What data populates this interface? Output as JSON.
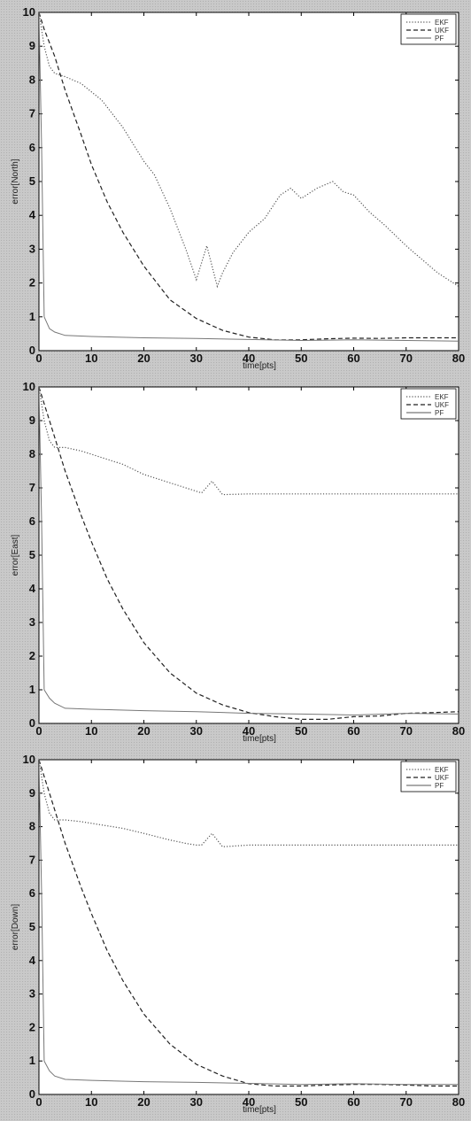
{
  "chart_data": [
    {
      "type": "line",
      "xlabel": "time[pts]",
      "ylabel": "error[North]",
      "xlim": [
        0,
        80
      ],
      "ylim": [
        0,
        10
      ],
      "xticks": [
        "0",
        "10",
        "20",
        "30",
        "40",
        "50",
        "60",
        "70",
        "80"
      ],
      "yticks": [
        "0",
        "1",
        "2",
        "3",
        "4",
        "5",
        "6",
        "7",
        "8",
        "9",
        "10"
      ],
      "grid": false,
      "legend_position": "top-right",
      "series": [
        {
          "name": "EKF",
          "style": "dotted",
          "color": "#555555",
          "x": [
            0,
            1,
            2,
            3,
            5,
            8,
            12,
            16,
            20,
            22,
            25,
            28,
            30,
            32,
            34,
            35,
            37,
            40,
            43,
            46,
            48,
            50,
            53,
            56,
            58,
            60,
            63,
            66,
            70,
            73,
            76,
            80
          ],
          "y": [
            10,
            9,
            8.4,
            8.2,
            8.1,
            7.9,
            7.4,
            6.6,
            5.6,
            5.2,
            4.2,
            3,
            2.1,
            3.1,
            1.9,
            2.3,
            2.9,
            3.5,
            3.9,
            4.6,
            4.8,
            4.5,
            4.8,
            5,
            4.7,
            4.6,
            4.1,
            3.7,
            3.1,
            2.7,
            2.3,
            1.9
          ]
        },
        {
          "name": "UKF",
          "style": "dashed",
          "color": "#222222",
          "x": [
            0,
            1,
            2,
            3,
            5,
            8,
            10,
            13,
            16,
            20,
            25,
            30,
            35,
            40,
            45,
            50,
            55,
            60,
            65,
            70,
            75,
            80
          ],
          "y": [
            10,
            9.5,
            9.1,
            8.7,
            7.7,
            6.4,
            5.5,
            4.4,
            3.5,
            2.5,
            1.5,
            0.95,
            0.6,
            0.4,
            0.32,
            0.32,
            0.35,
            0.37,
            0.36,
            0.38,
            0.38,
            0.38
          ]
        },
        {
          "name": "PF",
          "style": "solid",
          "color": "#777777",
          "x": [
            0,
            0.5,
            1,
            2,
            3,
            5,
            10,
            20,
            30,
            40,
            50,
            60,
            70,
            80
          ],
          "y": [
            10,
            6,
            1,
            0.65,
            0.55,
            0.45,
            0.42,
            0.38,
            0.36,
            0.33,
            0.3,
            0.32,
            0.3,
            0.28
          ]
        }
      ]
    },
    {
      "type": "line",
      "xlabel": "time[pts]",
      "ylabel": "error[East]",
      "xlim": [
        0,
        80
      ],
      "ylim": [
        0,
        10
      ],
      "xticks": [
        "0",
        "10",
        "20",
        "30",
        "40",
        "50",
        "60",
        "70",
        "80"
      ],
      "yticks": [
        "0",
        "1",
        "2",
        "3",
        "4",
        "5",
        "6",
        "7",
        "8",
        "9",
        "10"
      ],
      "grid": false,
      "legend_position": "top-right",
      "series": [
        {
          "name": "EKF",
          "style": "dotted",
          "color": "#555555",
          "x": [
            0,
            1,
            2,
            3,
            5,
            8,
            12,
            16,
            20,
            24,
            28,
            30,
            31,
            33,
            35,
            40,
            50,
            60,
            70,
            80
          ],
          "y": [
            10,
            9,
            8.4,
            8.2,
            8.2,
            8.1,
            7.9,
            7.7,
            7.4,
            7.2,
            7,
            6.9,
            6.85,
            7.2,
            6.8,
            6.82,
            6.82,
            6.82,
            6.82,
            6.82
          ]
        },
        {
          "name": "UKF",
          "style": "dashed",
          "color": "#222222",
          "x": [
            0,
            1,
            2,
            3,
            5,
            8,
            10,
            13,
            16,
            20,
            25,
            30,
            35,
            40,
            45,
            50,
            55,
            60,
            65,
            70,
            75,
            80
          ],
          "y": [
            10,
            9.5,
            9,
            8.5,
            7.5,
            6.2,
            5.4,
            4.3,
            3.4,
            2.4,
            1.5,
            0.9,
            0.55,
            0.32,
            0.2,
            0.12,
            0.12,
            0.2,
            0.22,
            0.3,
            0.32,
            0.35
          ]
        },
        {
          "name": "PF",
          "style": "solid",
          "color": "#777777",
          "x": [
            0,
            0.5,
            1,
            2,
            3,
            5,
            10,
            20,
            30,
            40,
            50,
            60,
            70,
            80
          ],
          "y": [
            10,
            6,
            1,
            0.75,
            0.6,
            0.45,
            0.42,
            0.38,
            0.35,
            0.3,
            0.28,
            0.25,
            0.3,
            0.28
          ]
        }
      ]
    },
    {
      "type": "line",
      "xlabel": "time[pts]",
      "ylabel": "error[Down]",
      "xlim": [
        0,
        80
      ],
      "ylim": [
        0,
        10
      ],
      "xticks": [
        "0",
        "10",
        "20",
        "30",
        "40",
        "50",
        "60",
        "70",
        "80"
      ],
      "yticks": [
        "0",
        "1",
        "2",
        "3",
        "4",
        "5",
        "6",
        "7",
        "8",
        "9",
        "10"
      ],
      "grid": false,
      "legend_position": "top-right",
      "series": [
        {
          "name": "EKF",
          "style": "dotted",
          "color": "#555555",
          "x": [
            0,
            1,
            2,
            3,
            5,
            8,
            12,
            16,
            20,
            25,
            28,
            30,
            31,
            33,
            35,
            40,
            50,
            60,
            70,
            80
          ],
          "y": [
            10,
            9,
            8.4,
            8.2,
            8.2,
            8.15,
            8.05,
            7.95,
            7.8,
            7.6,
            7.5,
            7.45,
            7.45,
            7.8,
            7.4,
            7.45,
            7.45,
            7.45,
            7.45,
            7.45
          ]
        },
        {
          "name": "UKF",
          "style": "dashed",
          "color": "#222222",
          "x": [
            0,
            1,
            2,
            3,
            5,
            8,
            10,
            13,
            16,
            20,
            25,
            30,
            35,
            40,
            45,
            50,
            55,
            60,
            65,
            70,
            75,
            80
          ],
          "y": [
            10,
            9.5,
            9,
            8.5,
            7.5,
            6.2,
            5.4,
            4.3,
            3.4,
            2.4,
            1.5,
            0.9,
            0.55,
            0.32,
            0.25,
            0.25,
            0.28,
            0.3,
            0.3,
            0.28,
            0.25,
            0.25
          ]
        },
        {
          "name": "PF",
          "style": "solid",
          "color": "#777777",
          "x": [
            0,
            0.5,
            1,
            2,
            3,
            5,
            10,
            20,
            30,
            40,
            50,
            60,
            70,
            80
          ],
          "y": [
            10,
            6,
            1,
            0.7,
            0.55,
            0.45,
            0.42,
            0.38,
            0.36,
            0.33,
            0.3,
            0.32,
            0.3,
            0.3
          ]
        }
      ]
    }
  ]
}
